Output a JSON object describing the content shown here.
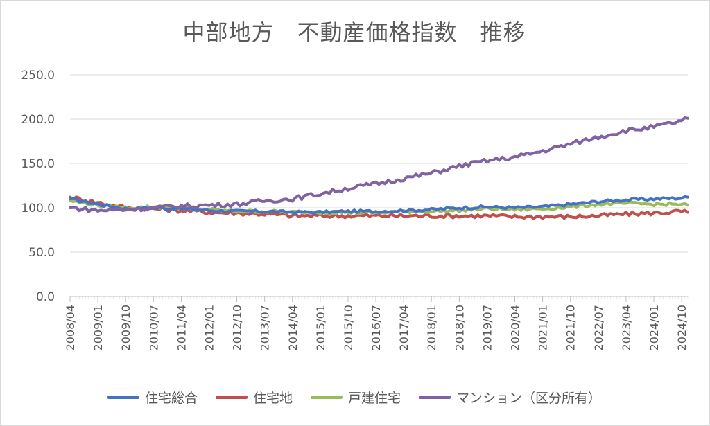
{
  "chart_data": {
    "type": "line",
    "title": "中部地方　不動産価格指数　推移",
    "ylim": [
      0,
      250
    ],
    "yticks": [
      "0.0",
      "50.0",
      "100.0",
      "150.0",
      "200.0",
      "250.0"
    ],
    "xticks": [
      "2008/04",
      "2009/01",
      "2009/10",
      "2010/07",
      "2011/04",
      "2012/01",
      "2012/10",
      "2013/07",
      "2014/04",
      "2015/01",
      "2015/10",
      "2016/07",
      "2017/04",
      "2018/01",
      "2018/10",
      "2019/07",
      "2020/04",
      "2021/01",
      "2021/10",
      "2022/07",
      "2023/04",
      "2024/01",
      "2024/10"
    ],
    "x_start": "2008/04",
    "x_end": "2024/12",
    "grid": true,
    "legend_position": "bottom",
    "series": [
      {
        "name": "住宅総合",
        "color": "#4472C4",
        "points": [
          [
            "2008/04",
            110
          ],
          [
            "2009/01",
            104
          ],
          [
            "2009/10",
            99
          ],
          [
            "2010/07",
            100
          ],
          [
            "2011/04",
            99
          ],
          [
            "2012/01",
            97
          ],
          [
            "2012/10",
            96
          ],
          [
            "2013/07",
            96
          ],
          [
            "2014/04",
            95
          ],
          [
            "2015/01",
            95
          ],
          [
            "2015/10",
            96
          ],
          [
            "2016/07",
            96
          ],
          [
            "2017/04",
            97
          ],
          [
            "2018/01",
            98
          ],
          [
            "2018/10",
            100
          ],
          [
            "2019/07",
            101
          ],
          [
            "2020/04",
            100
          ],
          [
            "2021/01",
            101
          ],
          [
            "2021/10",
            104
          ],
          [
            "2022/07",
            107
          ],
          [
            "2023/04",
            109
          ],
          [
            "2024/01",
            110
          ],
          [
            "2024/10",
            111
          ],
          [
            "2024/12",
            112
          ]
        ]
      },
      {
        "name": "住宅地",
        "color": "#C0504D",
        "points": [
          [
            "2008/04",
            112
          ],
          [
            "2009/01",
            106
          ],
          [
            "2009/10",
            100
          ],
          [
            "2010/07",
            99
          ],
          [
            "2011/04",
            97
          ],
          [
            "2012/01",
            95
          ],
          [
            "2012/10",
            94
          ],
          [
            "2013/07",
            93
          ],
          [
            "2014/04",
            91
          ],
          [
            "2015/01",
            91
          ],
          [
            "2015/10",
            91
          ],
          [
            "2016/07",
            91
          ],
          [
            "2017/04",
            91
          ],
          [
            "2018/01",
            91
          ],
          [
            "2018/10",
            91
          ],
          [
            "2019/07",
            91
          ],
          [
            "2020/04",
            90
          ],
          [
            "2021/01",
            90
          ],
          [
            "2021/10",
            90
          ],
          [
            "2022/07",
            91
          ],
          [
            "2023/04",
            93
          ],
          [
            "2024/01",
            94
          ],
          [
            "2024/10",
            96
          ],
          [
            "2024/12",
            95
          ]
        ]
      },
      {
        "name": "戸建住宅",
        "color": "#9BBB59",
        "points": [
          [
            "2008/04",
            108
          ],
          [
            "2009/01",
            103
          ],
          [
            "2009/10",
            100
          ],
          [
            "2010/07",
            101
          ],
          [
            "2011/04",
            100
          ],
          [
            "2012/01",
            98
          ],
          [
            "2012/10",
            96
          ],
          [
            "2013/07",
            96
          ],
          [
            "2014/04",
            95
          ],
          [
            "2015/01",
            95
          ],
          [
            "2015/10",
            95
          ],
          [
            "2016/07",
            94
          ],
          [
            "2017/04",
            96
          ],
          [
            "2018/01",
            96
          ],
          [
            "2018/10",
            97
          ],
          [
            "2019/07",
            99
          ],
          [
            "2020/04",
            98
          ],
          [
            "2021/01",
            99
          ],
          [
            "2021/10",
            101
          ],
          [
            "2022/07",
            104
          ],
          [
            "2023/04",
            105
          ],
          [
            "2024/01",
            104
          ],
          [
            "2024/10",
            104
          ],
          [
            "2024/12",
            103
          ]
        ]
      },
      {
        "name": "マンション（区分所有）",
        "color": "#8064A2",
        "points": [
          [
            "2008/04",
            100
          ],
          [
            "2009/01",
            97
          ],
          [
            "2009/10",
            98
          ],
          [
            "2010/07",
            100
          ],
          [
            "2011/04",
            102
          ],
          [
            "2012/01",
            103
          ],
          [
            "2012/10",
            104
          ],
          [
            "2013/07",
            108
          ],
          [
            "2014/04",
            110
          ],
          [
            "2015/01",
            116
          ],
          [
            "2015/10",
            122
          ],
          [
            "2016/07",
            127
          ],
          [
            "2017/04",
            133
          ],
          [
            "2018/01",
            139
          ],
          [
            "2018/10",
            147
          ],
          [
            "2019/07",
            153
          ],
          [
            "2020/04",
            157
          ],
          [
            "2021/01",
            164
          ],
          [
            "2021/10",
            172
          ],
          [
            "2022/07",
            180
          ],
          [
            "2023/04",
            187
          ],
          [
            "2024/01",
            191
          ],
          [
            "2024/10",
            198
          ],
          [
            "2024/12",
            201
          ]
        ]
      }
    ]
  }
}
